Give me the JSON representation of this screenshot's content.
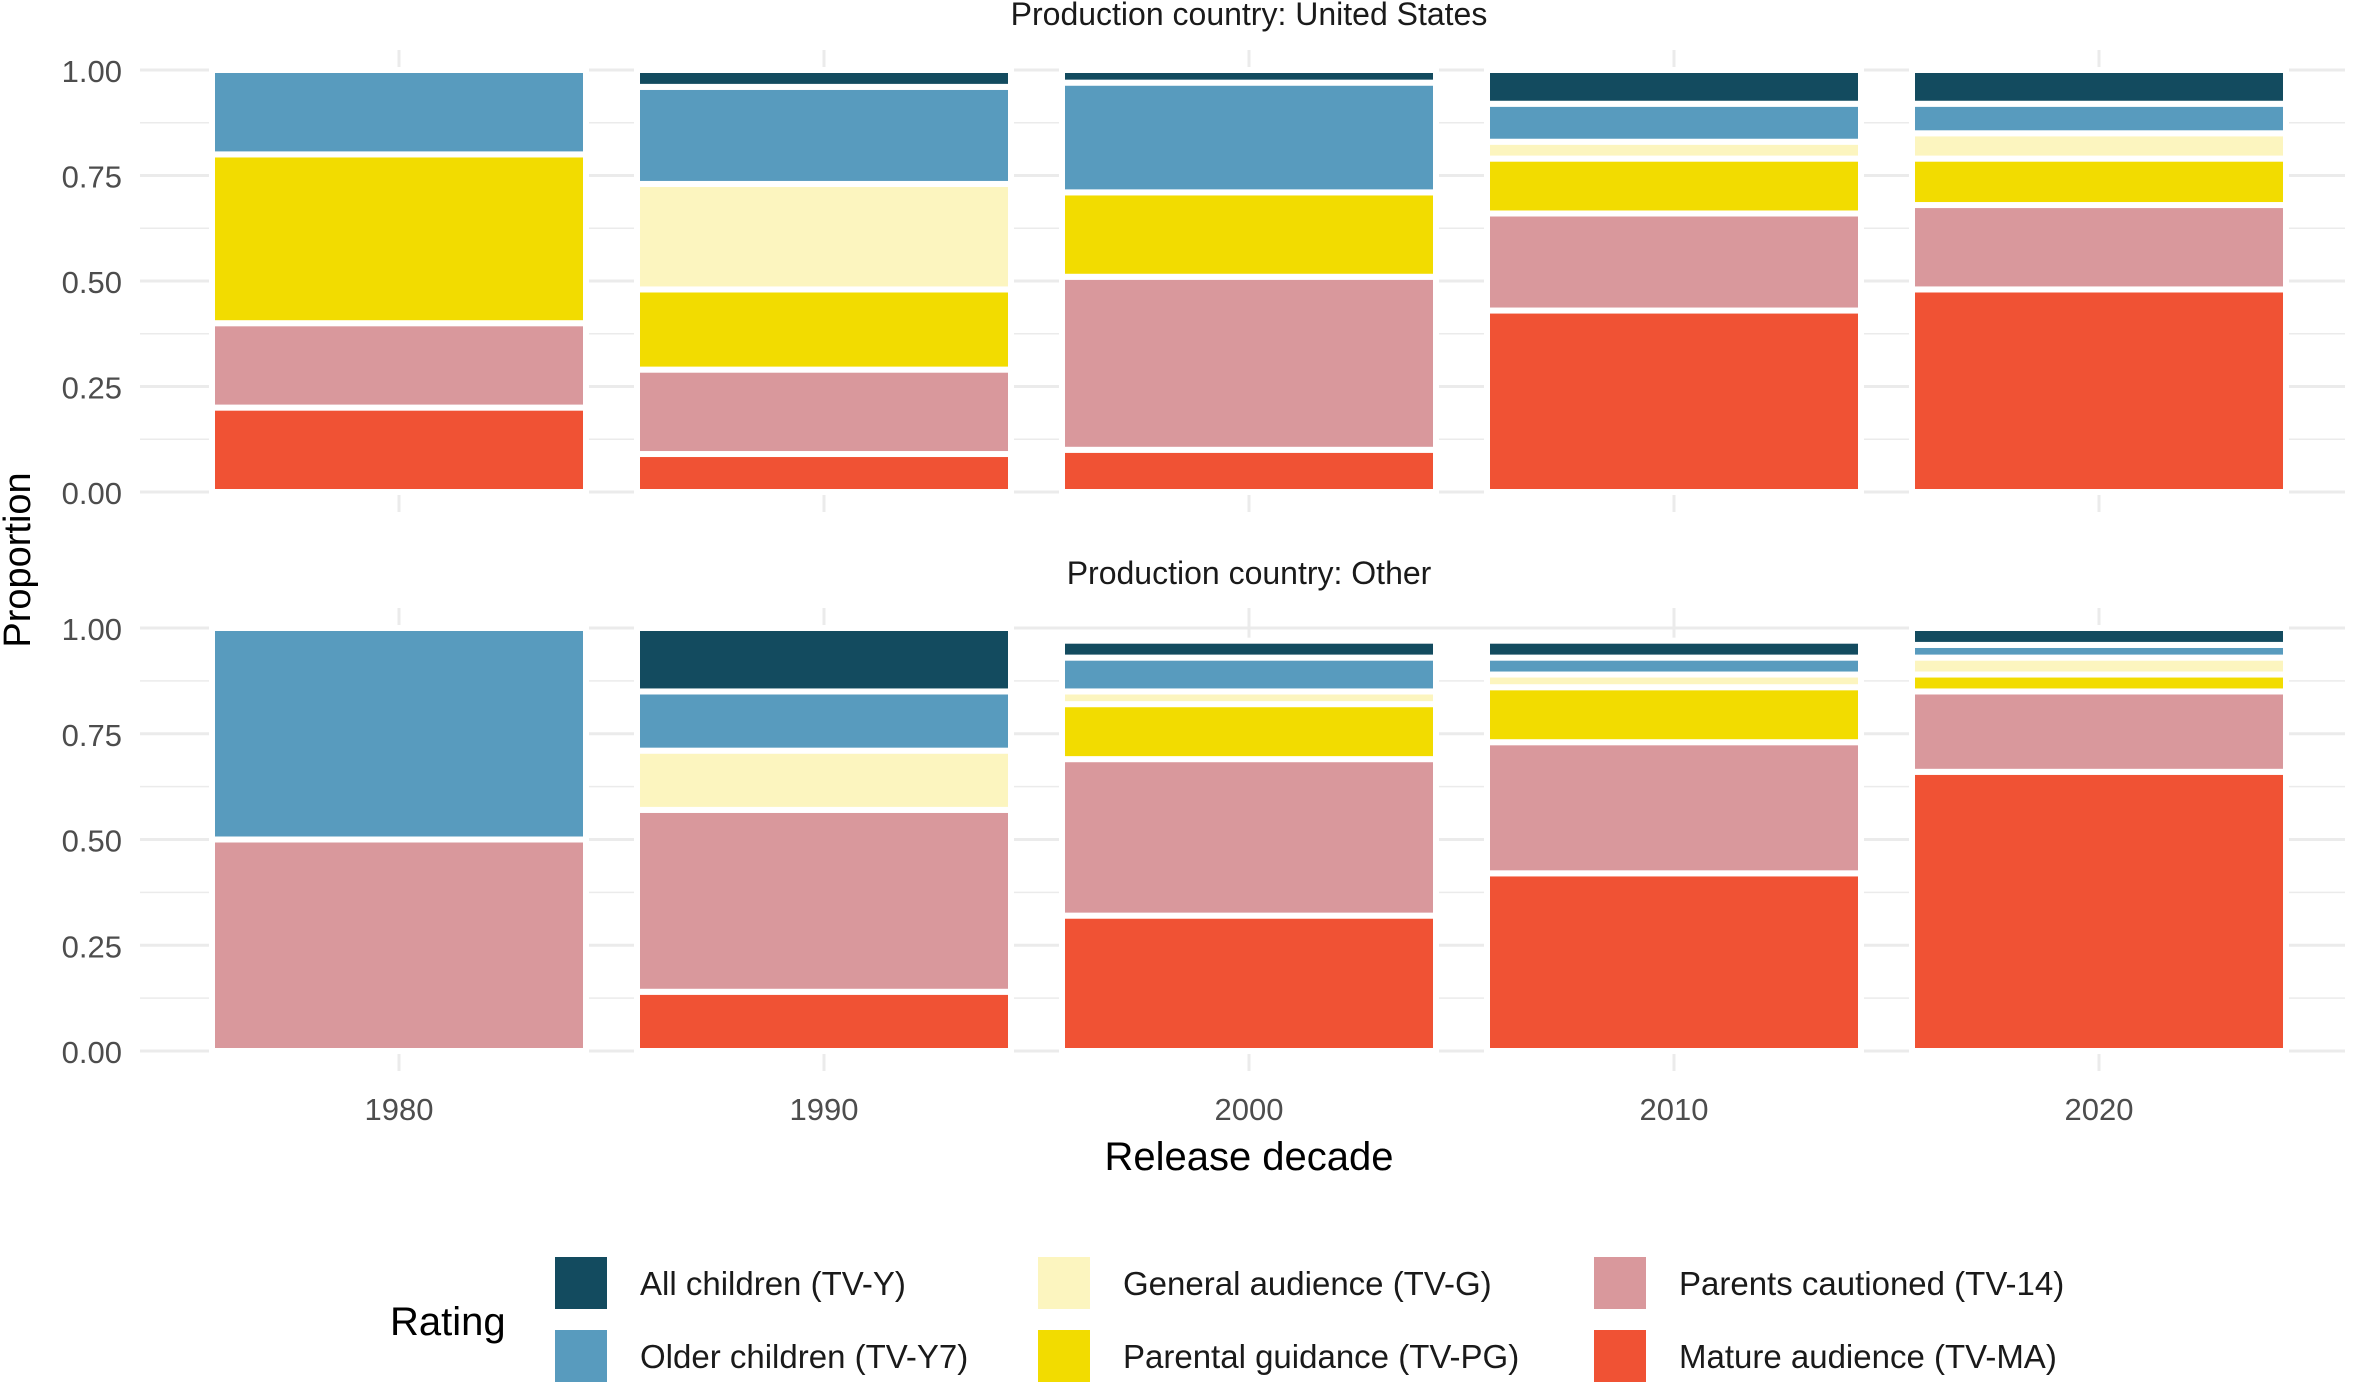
{
  "chart_data": {
    "type": "bar",
    "stacked": true,
    "xlabel": "Release decade",
    "ylabel": "Proportion",
    "ylim": [
      0,
      1
    ],
    "yticks": [
      "0.00",
      "0.25",
      "0.50",
      "0.75",
      "1.00"
    ],
    "categories": [
      "1980",
      "1990",
      "2000",
      "2010",
      "2020"
    ],
    "legend": {
      "title": "Rating",
      "position": "bottom",
      "items": [
        {
          "key": "TV-Y",
          "label": "All children (TV-Y)",
          "color": "#134b5f"
        },
        {
          "key": "TV-Y7",
          "label": "Older children (TV-Y7)",
          "color": "#589bbe"
        },
        {
          "key": "TV-G",
          "label": "General audience (TV-G)",
          "color": "#fcf5bf"
        },
        {
          "key": "TV-PG",
          "label": "Parental guidance (TV-PG)",
          "color": "#f2dc00"
        },
        {
          "key": "TV-14",
          "label": "Parents cautioned (TV-14)",
          "color": "#d9989c"
        },
        {
          "key": "TV-MA",
          "label": "Mature audience (TV-MA)",
          "color": "#f05234"
        }
      ]
    },
    "stack_order": [
      "TV-MA",
      "TV-14",
      "TV-PG",
      "TV-G",
      "TV-Y7",
      "TV-Y"
    ],
    "panels": [
      {
        "title": "Production country: United States",
        "series": [
          {
            "name": "Mature audience (TV-MA)",
            "key": "TV-MA",
            "values": [
              0.2,
              0.09,
              0.1,
              0.43,
              0.48
            ]
          },
          {
            "name": "Parents cautioned (TV-14)",
            "key": "TV-14",
            "values": [
              0.2,
              0.2,
              0.41,
              0.23,
              0.2
            ]
          },
          {
            "name": "Parental guidance (TV-PG)",
            "key": "TV-PG",
            "values": [
              0.4,
              0.19,
              0.2,
              0.13,
              0.11
            ]
          },
          {
            "name": "General audience (TV-G)",
            "key": "TV-G",
            "values": [
              0.0,
              0.25,
              0.0,
              0.04,
              0.06
            ]
          },
          {
            "name": "Older children (TV-Y7)",
            "key": "TV-Y7",
            "values": [
              0.2,
              0.23,
              0.26,
              0.09,
              0.07
            ]
          },
          {
            "name": "All children (TV-Y)",
            "key": "TV-Y",
            "values": [
              0.0,
              0.04,
              0.03,
              0.08,
              0.08
            ]
          }
        ]
      },
      {
        "title": "Production country: Other",
        "series": [
          {
            "name": "Mature audience (TV-MA)",
            "key": "TV-MA",
            "values": [
              0.0,
              0.14,
              0.32,
              0.42,
              0.66
            ]
          },
          {
            "name": "Parents cautioned (TV-14)",
            "key": "TV-14",
            "values": [
              0.5,
              0.43,
              0.37,
              0.31,
              0.19
            ]
          },
          {
            "name": "Parental guidance (TV-PG)",
            "key": "TV-PG",
            "values": [
              0.0,
              0.0,
              0.13,
              0.13,
              0.04
            ]
          },
          {
            "name": "General audience (TV-G)",
            "key": "TV-G",
            "values": [
              0.0,
              0.14,
              0.03,
              0.03,
              0.04
            ]
          },
          {
            "name": "Older children (TV-Y7)",
            "key": "TV-Y7",
            "values": [
              0.5,
              0.14,
              0.08,
              0.04,
              0.03
            ]
          },
          {
            "name": "All children (TV-Y)",
            "key": "TV-Y",
            "values": [
              0.0,
              0.15,
              0.04,
              0.04,
              0.04
            ]
          }
        ]
      }
    ]
  }
}
